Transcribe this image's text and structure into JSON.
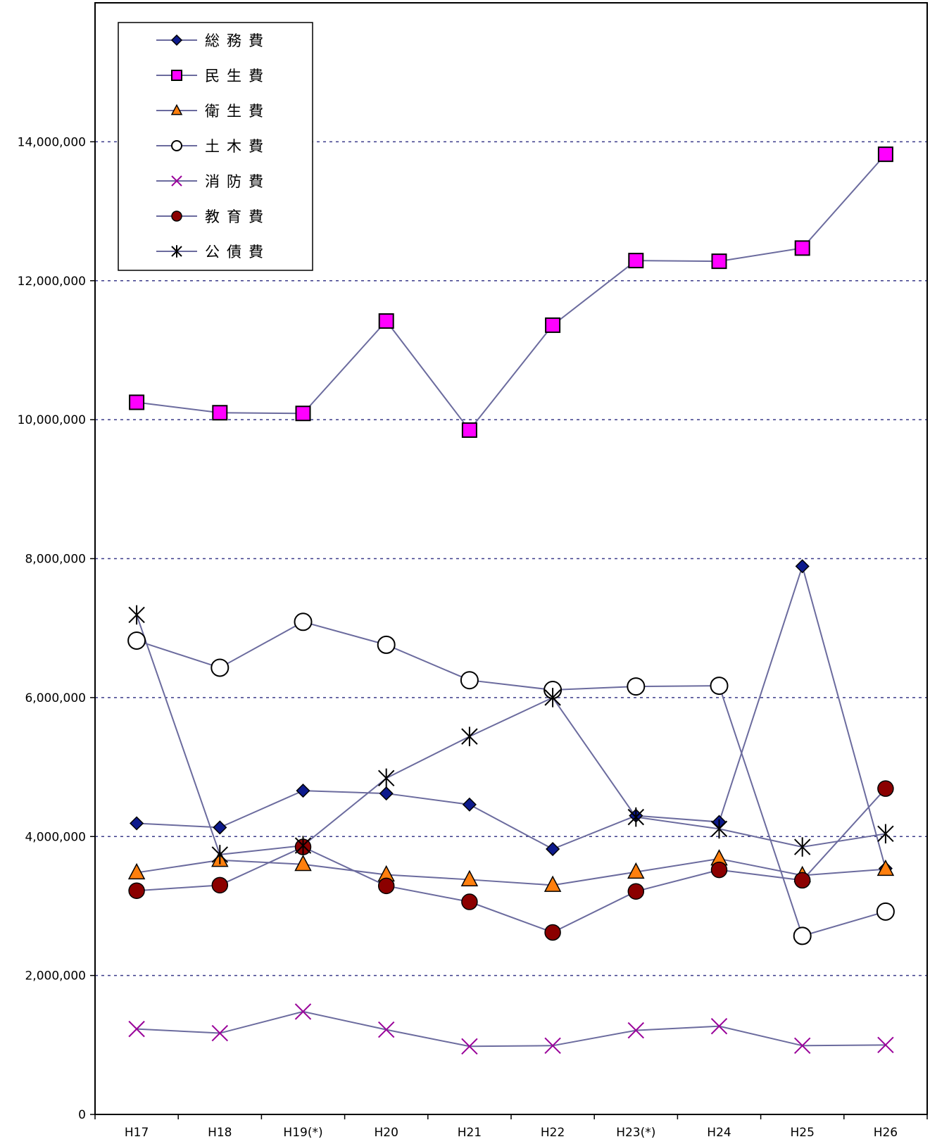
{
  "chart_data": {
    "type": "line",
    "title": "",
    "xlabel": "",
    "ylabel": "",
    "categories": [
      "H17",
      "H18",
      "H19(*)",
      "H20",
      "H21",
      "H22",
      "H23(*)",
      "H24",
      "H25",
      "H26"
    ],
    "ylim": [
      0,
      16000000
    ],
    "yticks": [
      0,
      2000000,
      4000000,
      6000000,
      8000000,
      10000000,
      12000000,
      14000000
    ],
    "ytick_labels": [
      "0",
      "2,000,000",
      "4,000,000",
      "6,000,000",
      "8,000,000",
      "10,000,000",
      "12,000,000",
      "14,000,000"
    ],
    "grid": true,
    "legend_position": "top-left",
    "line_color": "#6b6b9e",
    "series": [
      {
        "name": "総務費",
        "marker": "diamond",
        "color": "#0d1a8c",
        "values": [
          4190000,
          4130000,
          4660000,
          4620000,
          4460000,
          3820000,
          4300000,
          4210000,
          7890000,
          3540000
        ]
      },
      {
        "name": "民生費",
        "marker": "square",
        "color": "#ff00ff",
        "values": [
          10250000,
          10100000,
          10090000,
          11420000,
          9850000,
          11360000,
          12290000,
          12280000,
          12470000,
          13820000
        ]
      },
      {
        "name": "衛生費",
        "marker": "triangle",
        "color": "#ff7f0e",
        "values": [
          3480000,
          3660000,
          3600000,
          3450000,
          3380000,
          3300000,
          3490000,
          3680000,
          3440000,
          3530000
        ]
      },
      {
        "name": "土木費",
        "marker": "circle-open",
        "color": "#ffffff",
        "values": [
          6820000,
          6430000,
          7090000,
          6760000,
          6250000,
          6110000,
          6160000,
          6170000,
          2570000,
          2920000
        ]
      },
      {
        "name": "消防費",
        "marker": "x",
        "color": "#990099",
        "values": [
          1230000,
          1170000,
          1480000,
          1220000,
          980000,
          990000,
          1210000,
          1270000,
          990000,
          1000000
        ]
      },
      {
        "name": "教育費",
        "marker": "circle",
        "color": "#8b0000",
        "values": [
          3220000,
          3300000,
          3850000,
          3290000,
          3060000,
          2620000,
          3210000,
          3520000,
          3370000,
          4690000
        ]
      },
      {
        "name": "公債費",
        "marker": "star",
        "color": "#000000",
        "values": [
          7190000,
          3740000,
          3870000,
          4840000,
          5440000,
          6000000,
          4280000,
          4110000,
          3850000,
          4040000
        ]
      }
    ]
  }
}
